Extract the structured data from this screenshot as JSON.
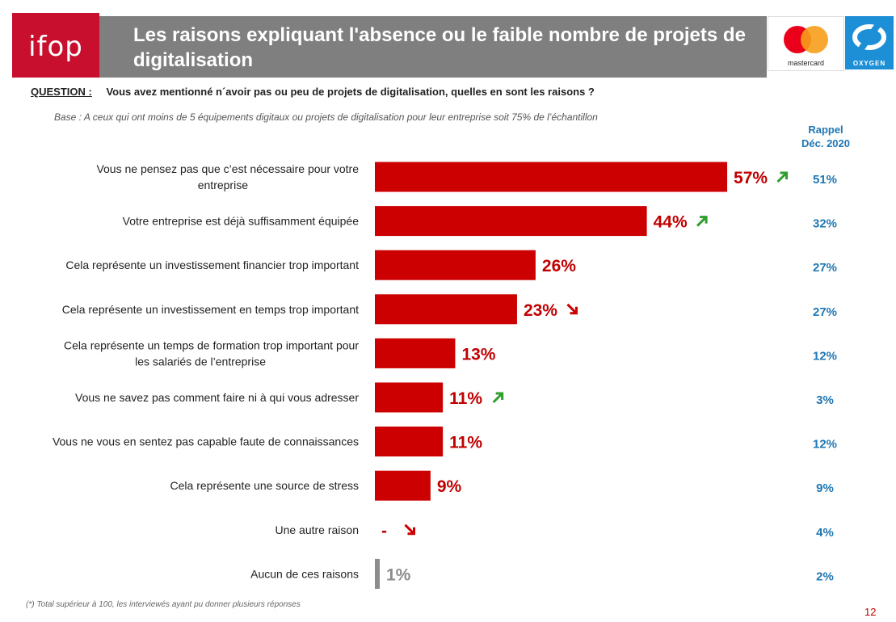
{
  "header": {
    "logo_text": "ifop",
    "title": "Les raisons expliquant l'absence ou le faible nombre de projets de digitalisation",
    "mastercard_text": "mastercard",
    "oxygen_text": "OXYGEN"
  },
  "question": {
    "label": "QUESTION :",
    "text": "Vous avez mentionné n´avoir pas ou peu de projets de digitalisation, quelles en sont les raisons ?"
  },
  "base_text": "Base : A ceux qui ont moins de 5 équipements digitaux ou projets de digitalisation pour leur entreprise soit 75% de l’échantillon",
  "rappel_header": [
    "Rappel",
    "Déc. 2020"
  ],
  "footnote": "(*) Total supérieur à 100, les interviewés ayant pu donner plusieurs  réponses",
  "page_number": "12",
  "colors": {
    "bar": "#cc0000",
    "bar_grey": "#8c8c8c",
    "value_label": "#c00000",
    "rappel": "#1f77b4",
    "arrow_up": "#2e9e2e",
    "arrow_down": "#cc0000"
  },
  "chart_data": {
    "type": "bar",
    "orientation": "horizontal",
    "categories": [
      [
        "Vous ne pensez pas que c’est nécessaire pour votre",
        "entreprise"
      ],
      [
        "Votre entreprise est déjà suffisamment équipée"
      ],
      [
        "Cela représente un investissement financier trop important"
      ],
      [
        "Cela représente un investissement en temps trop important"
      ],
      [
        "Cela représente un temps de formation trop important pour",
        "les salariés de l’entreprise"
      ],
      [
        "Vous ne savez pas comment faire ni à qui vous adresser"
      ],
      [
        "Vous ne vous en sentez pas capable faute de connaissances"
      ],
      [
        "Cela représente une source de stress"
      ],
      [
        "Une autre raison"
      ],
      [
        "Aucun de ces raisons"
      ]
    ],
    "values": [
      57,
      44,
      26,
      23,
      13,
      11,
      11,
      9,
      0,
      1
    ],
    "value_labels": [
      "57%",
      "44%",
      "26%",
      "23%",
      "13%",
      "11%",
      "11%",
      "9%",
      "-",
      "1%"
    ],
    "trend": [
      "up",
      "up",
      "",
      "down",
      "",
      "up",
      "",
      "",
      "down",
      ""
    ],
    "rappel_dec_2020": [
      "51%",
      "32%",
      "27%",
      "27%",
      "12%",
      "3%",
      "12%",
      "9%",
      "4%",
      "2%"
    ],
    "grey_bars": [
      false,
      false,
      false,
      false,
      false,
      false,
      false,
      false,
      false,
      true
    ],
    "xlim": [
      0,
      100
    ]
  }
}
